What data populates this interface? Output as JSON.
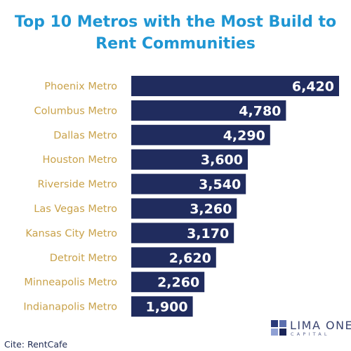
{
  "chart_data": {
    "type": "bar",
    "orientation": "horizontal",
    "title_lines": [
      "Top 10 Metros with the Most Build to",
      "Rent Communities"
    ],
    "categories": [
      "Phoenix Metro",
      "Columbus Metro",
      "Dallas Metro",
      "Houston Metro",
      "Riverside Metro",
      "Las Vegas Metro",
      "Kansas City Metro",
      "Detroit Metro",
      "Minneapolis Metro",
      "Indianapolis Metro"
    ],
    "values": [
      6420,
      4780,
      4290,
      3600,
      3540,
      3260,
      3170,
      2620,
      2260,
      1900
    ],
    "value_labels": [
      "6,420",
      "4,780",
      "4,290",
      "3,600",
      "3,540",
      "3,260",
      "3,170",
      "2,620",
      "2,260",
      "1,900"
    ],
    "xlim": [
      0,
      6420
    ],
    "grid": false,
    "legend": "none",
    "colors": {
      "bar": "#202c5e",
      "category_label": "#c9a24a",
      "title": "#1f96d3"
    }
  },
  "source": "Cite: RentCafe",
  "logo": {
    "name": "LIMA ONE",
    "sub": "CAPITAL"
  }
}
